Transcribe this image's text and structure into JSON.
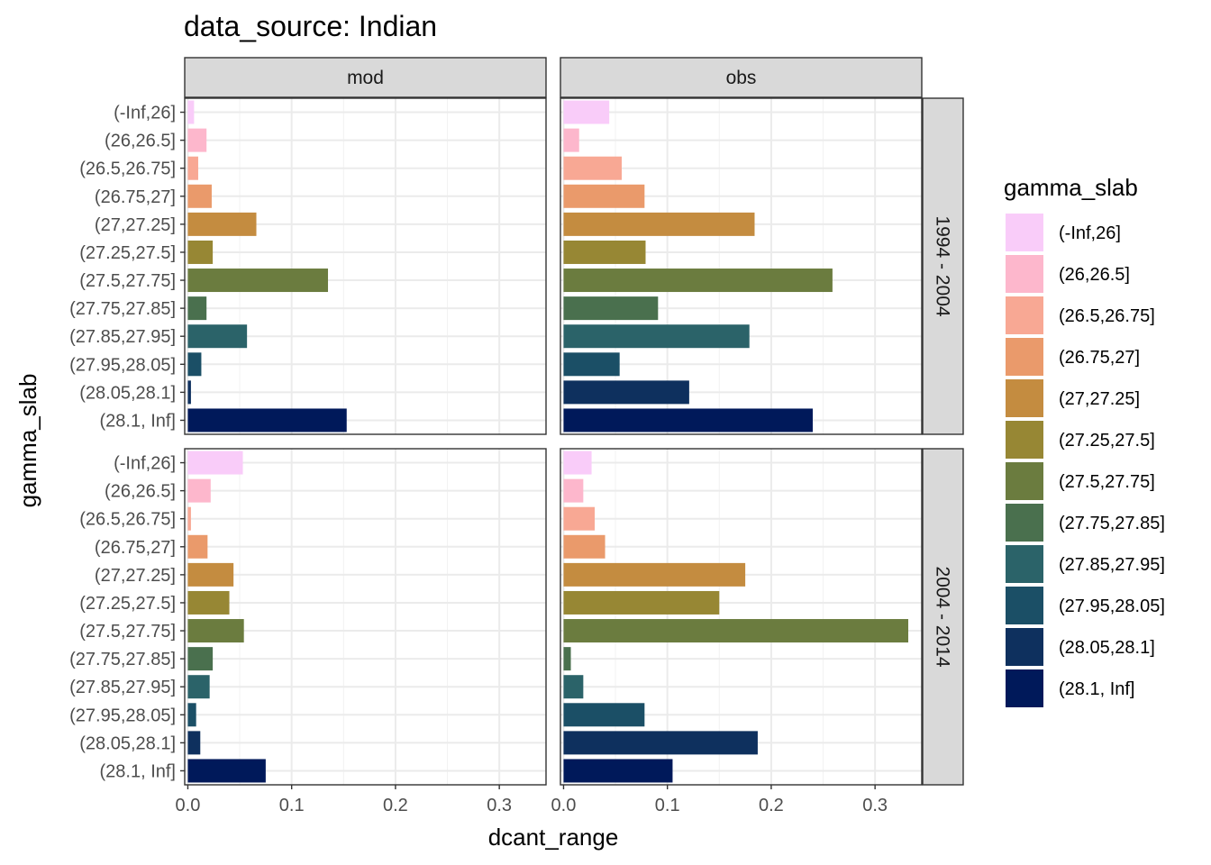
{
  "chart_data": {
    "type": "bar",
    "orientation": "horizontal",
    "title": "data_source: Indian",
    "xlabel": "dcant_range",
    "ylabel": "gamma_slab",
    "xlim": [
      -0.003,
      0.345
    ],
    "x_ticks": [
      "0.0",
      "0.1",
      "0.2",
      "0.3"
    ],
    "x_tick_values": [
      0,
      0.1,
      0.2,
      0.3
    ],
    "grid": true,
    "legend_title": "gamma_slab",
    "legend_position": "right",
    "categories": [
      "(-Inf,26]",
      "(26,26.5]",
      "(26.5,26.75]",
      "(26.75,27]",
      "(27,27.25]",
      "(27.25,27.5]",
      "(27.5,27.75]",
      "(27.75,27.85]",
      "(27.85,27.95]",
      "(27.95,28.05]",
      "(28.05,28.1]",
      "(28.1, Inf]"
    ],
    "colors": [
      "#F9CCF9",
      "#FDB7CC",
      "#F8A894",
      "#EA9A6B",
      "#C48C40",
      "#978734",
      "#6B7C3F",
      "#4A704E",
      "#2B6369",
      "#1B4F66",
      "#0E305E",
      "#00195A"
    ],
    "facet_columns": [
      "mod",
      "obs"
    ],
    "facet_rows": [
      "1994 - 2004",
      "2004 - 2014"
    ],
    "panels": [
      {
        "col": "mod",
        "row": "1994 - 2004",
        "values": [
          0.006,
          0.018,
          0.01,
          0.023,
          0.066,
          0.024,
          0.135,
          0.018,
          0.057,
          0.013,
          0.003,
          0.153
        ]
      },
      {
        "col": "obs",
        "row": "1994 - 2004",
        "values": [
          0.044,
          0.015,
          0.056,
          0.078,
          0.184,
          0.079,
          0.259,
          0.091,
          0.179,
          0.054,
          0.121,
          0.24
        ]
      },
      {
        "col": "mod",
        "row": "2004 - 2014",
        "values": [
          0.053,
          0.022,
          0.003,
          0.019,
          0.044,
          0.04,
          0.054,
          0.024,
          0.021,
          0.008,
          0.012,
          0.075
        ]
      },
      {
        "col": "obs",
        "row": "2004 - 2014",
        "values": [
          0.027,
          0.019,
          0.03,
          0.04,
          0.175,
          0.15,
          0.332,
          0.007,
          0.019,
          0.078,
          0.187,
          0.105
        ]
      }
    ]
  }
}
